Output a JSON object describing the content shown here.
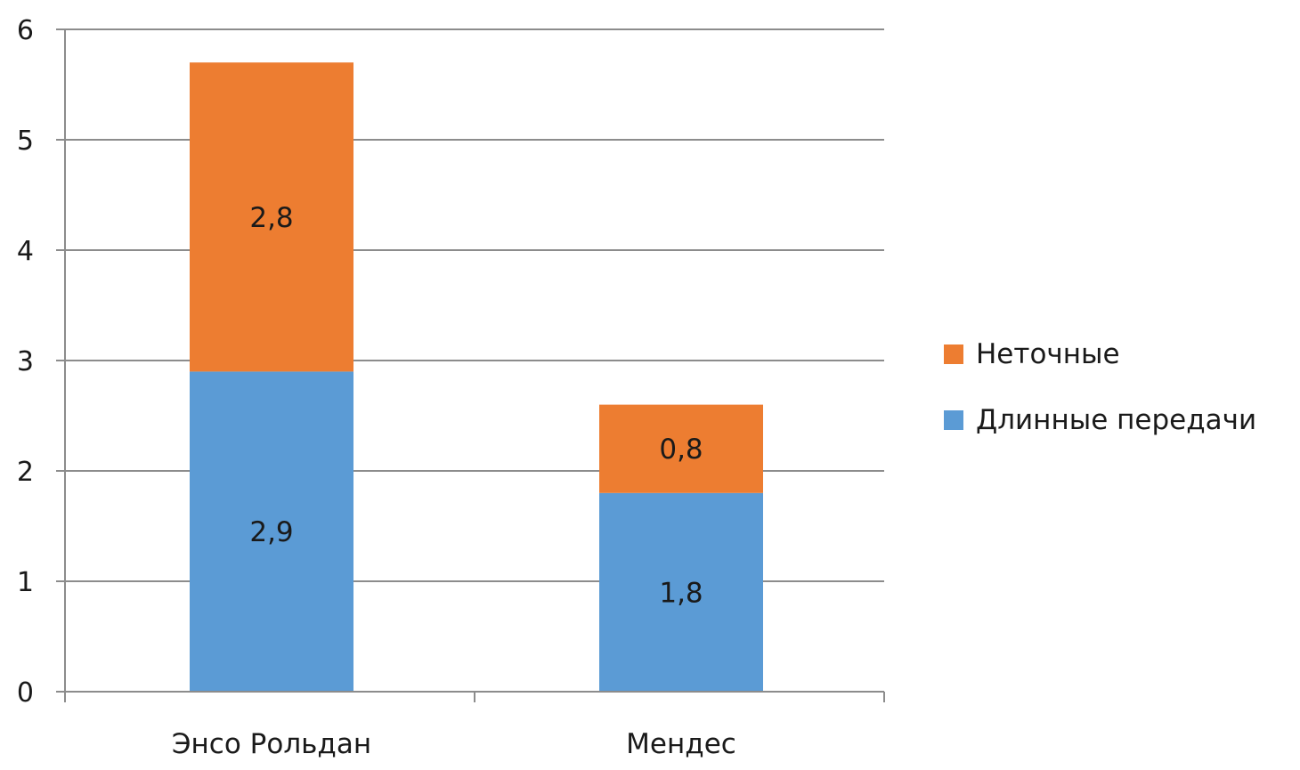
{
  "chart_data": {
    "type": "bar",
    "stacked": true,
    "categories": [
      "Энсо Рольдан",
      "Мендес"
    ],
    "series": [
      {
        "name": "Длинные передачи",
        "values": [
          2.9,
          1.8
        ],
        "labels": [
          "2,9",
          "1,8"
        ],
        "color": "#5b9bd5"
      },
      {
        "name": "Неточные",
        "values": [
          2.8,
          0.8
        ],
        "labels": [
          "2,8",
          "0,8"
        ],
        "color": "#ed7d31"
      }
    ],
    "ylim": [
      0,
      6
    ],
    "yticks": [
      "0",
      "1",
      "2",
      "3",
      "4",
      "5",
      "6"
    ],
    "grid": true,
    "legend_position": "right",
    "legend_order": [
      "Неточные",
      "Длинные передачи"
    ],
    "title": "",
    "xlabel": "",
    "ylabel": ""
  }
}
